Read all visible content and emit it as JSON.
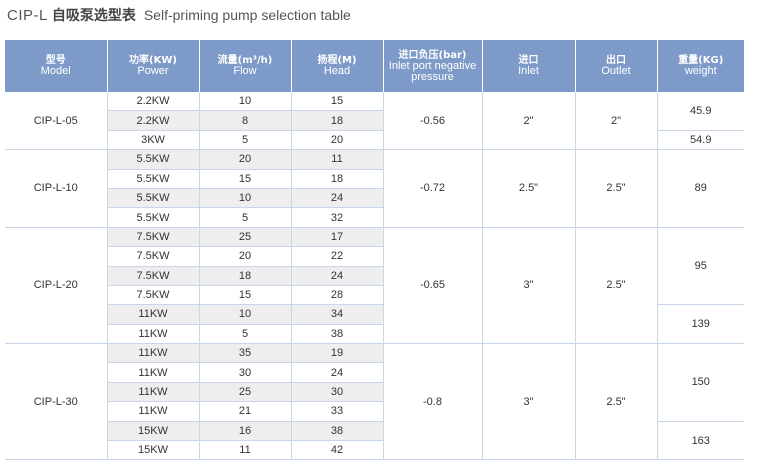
{
  "title": {
    "code": "CIP-L",
    "cn": "自吸泵选型表",
    "en": "Self-priming pump selection table"
  },
  "headers": [
    {
      "cn": "型号",
      "en": "Model"
    },
    {
      "cn": "功率(KW)",
      "en": "Power"
    },
    {
      "cn": "流量(m³/h)",
      "en": "Flow"
    },
    {
      "cn": "扬程(M)",
      "en": "Head"
    },
    {
      "cn": "进口负压(bar)",
      "en": "Inlet port negative pressure"
    },
    {
      "cn": "进口",
      "en": "Inlet"
    },
    {
      "cn": "出口",
      "en": "Outlet"
    },
    {
      "cn": "重量(KG)",
      "en": "weight"
    }
  ],
  "groups": [
    {
      "model": "CIP-L-05",
      "pressure": "-0.56",
      "inlet": "2\"",
      "outlet": "2\"",
      "rows": [
        {
          "power": "2.2KW",
          "flow": "10",
          "head": "15"
        },
        {
          "power": "2.2KW",
          "flow": "8",
          "head": "18"
        },
        {
          "power": "3KW",
          "flow": "5",
          "head": "20"
        }
      ],
      "weights": [
        {
          "value": "45.9",
          "span": 2
        },
        {
          "value": "54.9",
          "span": 1
        }
      ]
    },
    {
      "model": "CIP-L-10",
      "pressure": "-0.72",
      "inlet": "2.5\"",
      "outlet": "2.5\"",
      "rows": [
        {
          "power": "5.5KW",
          "flow": "20",
          "head": "11"
        },
        {
          "power": "5.5KW",
          "flow": "15",
          "head": "18"
        },
        {
          "power": "5.5KW",
          "flow": "10",
          "head": "24"
        },
        {
          "power": "5.5KW",
          "flow": "5",
          "head": "32"
        }
      ],
      "weights": [
        {
          "value": "89",
          "span": 4
        }
      ]
    },
    {
      "model": "CIP-L-20",
      "pressure": "-0.65",
      "inlet": "3\"",
      "outlet": "2.5\"",
      "rows": [
        {
          "power": "7.5KW",
          "flow": "25",
          "head": "17"
        },
        {
          "power": "7.5KW",
          "flow": "20",
          "head": "22"
        },
        {
          "power": "7.5KW",
          "flow": "18",
          "head": "24"
        },
        {
          "power": "7.5KW",
          "flow": "15",
          "head": "28"
        },
        {
          "power": "11KW",
          "flow": "10",
          "head": "34"
        },
        {
          "power": "11KW",
          "flow": "5",
          "head": "38"
        }
      ],
      "weights": [
        {
          "value": "95",
          "span": 4
        },
        {
          "value": "139",
          "span": 2
        }
      ]
    },
    {
      "model": "CIP-L-30",
      "pressure": "-0.8",
      "inlet": "3\"",
      "outlet": "2.5\"",
      "rows": [
        {
          "power": "11KW",
          "flow": "35",
          "head": "19"
        },
        {
          "power": "11KW",
          "flow": "30",
          "head": "24"
        },
        {
          "power": "11KW",
          "flow": "25",
          "head": "30"
        },
        {
          "power": "11KW",
          "flow": "21",
          "head": "33"
        },
        {
          "power": "15KW",
          "flow": "16",
          "head": "38"
        },
        {
          "power": "15KW",
          "flow": "11",
          "head": "42"
        }
      ],
      "weights": [
        {
          "value": "150",
          "span": 4
        },
        {
          "value": "163",
          "span": 2
        }
      ]
    }
  ]
}
